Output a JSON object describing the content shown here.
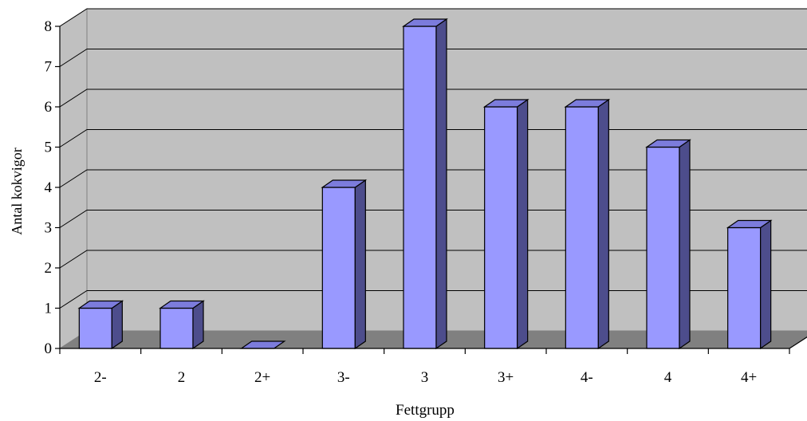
{
  "chart_data": {
    "type": "bar",
    "title": "",
    "xlabel": "Fettgrupp",
    "ylabel": "Antal kokvigor",
    "categories": [
      "2-",
      "2",
      "2+",
      "3-",
      "3",
      "3+",
      "4-",
      "4",
      "4+"
    ],
    "values": [
      1,
      1,
      0,
      4,
      8,
      6,
      6,
      5,
      3
    ],
    "yticks": [
      "0",
      "1",
      "2",
      "3",
      "4",
      "5",
      "6",
      "7",
      "8"
    ],
    "ylim": [
      0,
      8
    ],
    "grid": true,
    "legend": "none",
    "style": "3d-column"
  },
  "colors": {
    "wall": "#c0c0c0",
    "floor": "#808080",
    "bar_front": "#9999ff",
    "bar_top": "#7c7cdc",
    "bar_side": "#4d4d8c",
    "gridline": "#000000"
  }
}
